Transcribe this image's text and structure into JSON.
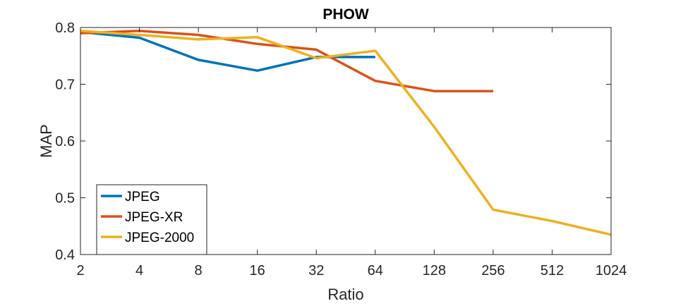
{
  "chart_data": {
    "type": "line",
    "title": "PHOW",
    "xlabel": "Ratio",
    "ylabel": "MAP",
    "x_scale": "log2",
    "x_ticks": [
      2,
      4,
      8,
      16,
      32,
      64,
      128,
      256,
      512,
      1024
    ],
    "x_tick_labels": [
      "2",
      "4",
      "8",
      "16",
      "32",
      "64",
      "128",
      "256",
      "512",
      "1024"
    ],
    "xlim": [
      2,
      1024
    ],
    "ylim": [
      0.4,
      0.8
    ],
    "y_ticks": [
      0.4,
      0.5,
      0.6,
      0.7,
      0.8
    ],
    "y_tick_labels": [
      "0.4",
      "0.5",
      "0.6",
      "0.7",
      "0.8"
    ],
    "grid": false,
    "legend_position": "bottom-left",
    "series": [
      {
        "name": "JPEG",
        "color": "#0072BD",
        "x": [
          2,
          4,
          8,
          16,
          32,
          64
        ],
        "y": [
          0.792,
          0.782,
          0.743,
          0.724,
          0.748,
          0.748
        ]
      },
      {
        "name": "JPEG-XR",
        "color": "#D95319",
        "x": [
          2,
          4,
          8,
          16,
          32,
          64,
          128,
          256
        ],
        "y": [
          0.79,
          0.794,
          0.787,
          0.771,
          0.761,
          0.706,
          0.688,
          0.688
        ]
      },
      {
        "name": "JPEG-2000",
        "color": "#EDB120",
        "x": [
          2,
          4,
          8,
          16,
          32,
          64,
          128,
          256,
          512,
          1024
        ],
        "y": [
          0.794,
          0.787,
          0.779,
          0.783,
          0.746,
          0.759,
          0.625,
          0.479,
          0.459,
          0.435
        ]
      }
    ]
  }
}
